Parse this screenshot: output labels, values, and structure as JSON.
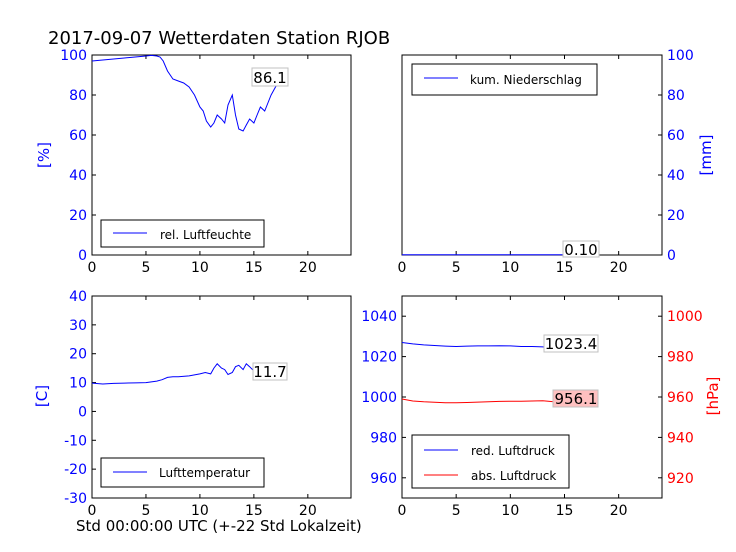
{
  "title": "2017-09-07 Wetterdaten Station RJOB",
  "x_axis_label": "Std 00:00:00 UTC (+-22 Std Lokalzeit)",
  "colors": {
    "blue": "#0000ff",
    "red": "#ff0000",
    "axis": "#000000",
    "label_box": "#c0c0c0",
    "red_box_fill": "#ffc0c0"
  },
  "chart_data": [
    {
      "type": "line",
      "name": "humidity",
      "ylabel": "[%]",
      "xlim": [
        0,
        24
      ],
      "ylim": [
        0,
        100
      ],
      "xticks": [
        0,
        5,
        10,
        15,
        20
      ],
      "yticks": [
        0,
        20,
        40,
        60,
        80,
        100
      ],
      "legend": "bottom-left",
      "series": [
        {
          "name": "rel. Luftfeuchte",
          "color": "#0000ff",
          "x": [
            0,
            1,
            2,
            3,
            4,
            5,
            5.5,
            6,
            6.3,
            6.6,
            7,
            7.5,
            8,
            8.5,
            9,
            9.5,
            10,
            10.3,
            10.6,
            11,
            11.3,
            11.6,
            12,
            12.3,
            12.6,
            13,
            13.3,
            13.6,
            14,
            14.3,
            14.6,
            15,
            15.3,
            15.6,
            16,
            16.3,
            16.6,
            17,
            17.3,
            17.6
          ],
          "y": [
            97,
            97.5,
            98,
            98.5,
            99,
            99.5,
            99.8,
            99.5,
            99,
            97,
            92,
            88,
            87,
            86,
            84,
            80,
            74,
            72,
            67,
            64,
            66,
            70,
            68,
            66,
            75,
            80,
            70,
            63,
            62,
            65,
            68,
            66,
            70,
            74,
            72,
            76,
            80,
            84,
            86,
            86.1
          ]
        }
      ],
      "last_value_label": "86.1"
    },
    {
      "type": "line",
      "name": "precipitation",
      "ylabel": "[mm]",
      "ylabel_side": "right",
      "xlim": [
        0,
        24
      ],
      "ylim": [
        0,
        100
      ],
      "xticks": [
        0,
        5,
        10,
        15,
        20
      ],
      "yticks": [
        0,
        20,
        40,
        60,
        80,
        100
      ],
      "legend": "top-left",
      "series": [
        {
          "name": "kum. Niederschlag",
          "color": "#0000ff",
          "x": [
            0,
            17.6
          ],
          "y": [
            0.1,
            0.1
          ]
        }
      ],
      "last_value_label": "0.10"
    },
    {
      "type": "line",
      "name": "temperature",
      "ylabel": "[C]",
      "xlim": [
        0,
        24
      ],
      "ylim": [
        -30,
        40
      ],
      "xticks": [
        0,
        5,
        10,
        15,
        20
      ],
      "yticks": [
        -30,
        -20,
        -10,
        0,
        10,
        20,
        30,
        40
      ],
      "legend": "bottom-left",
      "series": [
        {
          "name": "Lufttemperatur",
          "color": "#0000ff",
          "x": [
            0,
            1,
            2,
            3,
            4,
            5,
            6,
            6.5,
            7,
            7.5,
            8,
            9,
            10,
            10.5,
            11,
            11.3,
            11.6,
            12,
            12.3,
            12.6,
            13,
            13.3,
            13.6,
            14,
            14.3,
            14.6,
            15,
            15.5,
            16,
            16.5,
            17,
            17.6
          ],
          "y": [
            9.8,
            9.5,
            9.7,
            9.8,
            9.9,
            10,
            10.5,
            11,
            11.8,
            12,
            12,
            12.3,
            13,
            13.5,
            13,
            15,
            16.5,
            15,
            14.5,
            12.8,
            13.5,
            15.5,
            16,
            14.5,
            16.5,
            15.5,
            14,
            13,
            12,
            12,
            11.8,
            11.7
          ]
        }
      ],
      "last_value_label": "11.7"
    },
    {
      "type": "line",
      "name": "pressure",
      "ylabel": "[hPa]",
      "ylabel_side": "right",
      "xlim": [
        0,
        24
      ],
      "ylim_left": [
        950,
        1050
      ],
      "ylim_right": [
        910,
        1010
      ],
      "xticks": [
        0,
        5,
        10,
        15,
        20
      ],
      "yticks_left": [
        960,
        980,
        1000,
        1020,
        1040
      ],
      "yticks_right": [
        920,
        940,
        960,
        980,
        1000
      ],
      "legend": "bottom-left",
      "series": [
        {
          "name": "red. Luftdruck",
          "color": "#0000ff",
          "axis": "left",
          "x": [
            0,
            1,
            2,
            3,
            4,
            5,
            6,
            7,
            8,
            9,
            10,
            11,
            12,
            13,
            14,
            15,
            16,
            17,
            17.6
          ],
          "y": [
            1027,
            1026.3,
            1025.8,
            1025.5,
            1025.2,
            1025,
            1025.2,
            1025.3,
            1025.3,
            1025.4,
            1025.3,
            1025,
            1025,
            1024.8,
            1024,
            1023.6,
            1023.4,
            1023.4,
            1023.4
          ]
        },
        {
          "name": "abs. Luftdruck",
          "color": "#ff0000",
          "axis": "right",
          "x": [
            0,
            1,
            2,
            3,
            4,
            5,
            6,
            7,
            8,
            9,
            10,
            11,
            12,
            13,
            14,
            15,
            16,
            17,
            17.6
          ],
          "y": [
            959,
            958,
            957.6,
            957.4,
            957.2,
            957.2,
            957.3,
            957.5,
            957.6,
            957.8,
            957.9,
            957.9,
            958,
            958.1,
            957.6,
            956.6,
            956.2,
            956.1,
            956.1
          ]
        }
      ],
      "last_value_label": "1023.4",
      "last_value_label_2": "956.1"
    }
  ]
}
